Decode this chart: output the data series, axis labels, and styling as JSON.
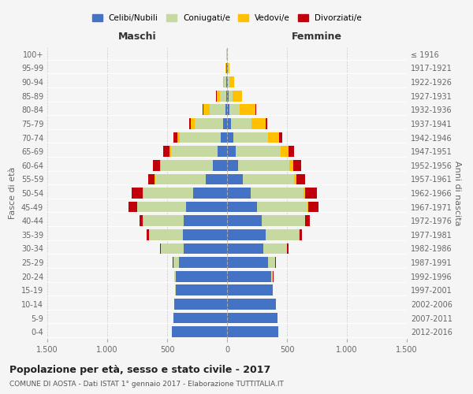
{
  "age_groups": [
    "0-4",
    "5-9",
    "10-14",
    "15-19",
    "20-24",
    "25-29",
    "30-34",
    "35-39",
    "40-44",
    "45-49",
    "50-54",
    "55-59",
    "60-64",
    "65-69",
    "70-74",
    "75-79",
    "80-84",
    "85-89",
    "90-94",
    "95-99",
    "100+"
  ],
  "birth_years": [
    "2012-2016",
    "2007-2011",
    "2002-2006",
    "1997-2001",
    "1992-1996",
    "1987-1991",
    "1982-1986",
    "1977-1981",
    "1972-1976",
    "1967-1971",
    "1962-1966",
    "1957-1961",
    "1952-1956",
    "1947-1951",
    "1942-1946",
    "1937-1941",
    "1932-1936",
    "1927-1931",
    "1922-1926",
    "1917-1921",
    "≤ 1916"
  ],
  "males": {
    "celibi": [
      460,
      450,
      440,
      430,
      430,
      400,
      360,
      370,
      360,
      340,
      280,
      180,
      120,
      80,
      55,
      30,
      15,
      8,
      5,
      4,
      2
    ],
    "coniugati": [
      0,
      0,
      0,
      2,
      10,
      50,
      190,
      280,
      340,
      410,
      420,
      420,
      430,
      390,
      340,
      240,
      130,
      50,
      20,
      5,
      2
    ],
    "vedovi": [
      0,
      0,
      0,
      0,
      0,
      0,
      0,
      1,
      1,
      2,
      3,
      6,
      8,
      12,
      20,
      30,
      55,
      30,
      10,
      3,
      1
    ],
    "divorziati": [
      0,
      0,
      0,
      0,
      2,
      5,
      10,
      20,
      30,
      70,
      90,
      55,
      60,
      50,
      30,
      15,
      5,
      3,
      1,
      0,
      0
    ]
  },
  "females": {
    "nubili": [
      430,
      420,
      410,
      380,
      370,
      340,
      300,
      320,
      290,
      250,
      200,
      130,
      90,
      75,
      55,
      30,
      18,
      10,
      8,
      5,
      2
    ],
    "coniugate": [
      0,
      0,
      0,
      2,
      12,
      60,
      200,
      280,
      360,
      420,
      440,
      430,
      430,
      370,
      290,
      175,
      90,
      35,
      15,
      5,
      2
    ],
    "vedove": [
      0,
      0,
      0,
      0,
      0,
      0,
      1,
      2,
      3,
      6,
      10,
      20,
      30,
      65,
      90,
      120,
      130,
      80,
      35,
      8,
      2
    ],
    "divorziate": [
      0,
      0,
      0,
      0,
      3,
      5,
      10,
      20,
      40,
      90,
      100,
      70,
      70,
      50,
      25,
      10,
      6,
      3,
      1,
      0,
      0
    ]
  },
  "colors": {
    "celibi": "#4472c4",
    "coniugati": "#c5d9a0",
    "vedovi": "#ffc000",
    "divorziati": "#c0000b"
  },
  "xlim": 1500,
  "title": "Popolazione per età, sesso e stato civile - 2017",
  "subtitle": "COMUNE DI AOSTA - Dati ISTAT 1° gennaio 2017 - Elaborazione TUTTITALIA.IT",
  "ylabel": "Fasce di età",
  "ylabel2": "Anni di nascita",
  "xlabel_left": "Maschi",
  "xlabel_right": "Femmine",
  "legend_labels": [
    "Celibi/Nubili",
    "Coniugati/e",
    "Vedovi/e",
    "Divorziati/e"
  ],
  "xtick_vals": [
    -1500,
    -1000,
    -500,
    0,
    500,
    1000,
    1500
  ],
  "xtick_labels": [
    "1.500",
    "1.000",
    "500",
    "0",
    "500",
    "1.000",
    "1.500"
  ],
  "background_color": "#f5f5f5"
}
